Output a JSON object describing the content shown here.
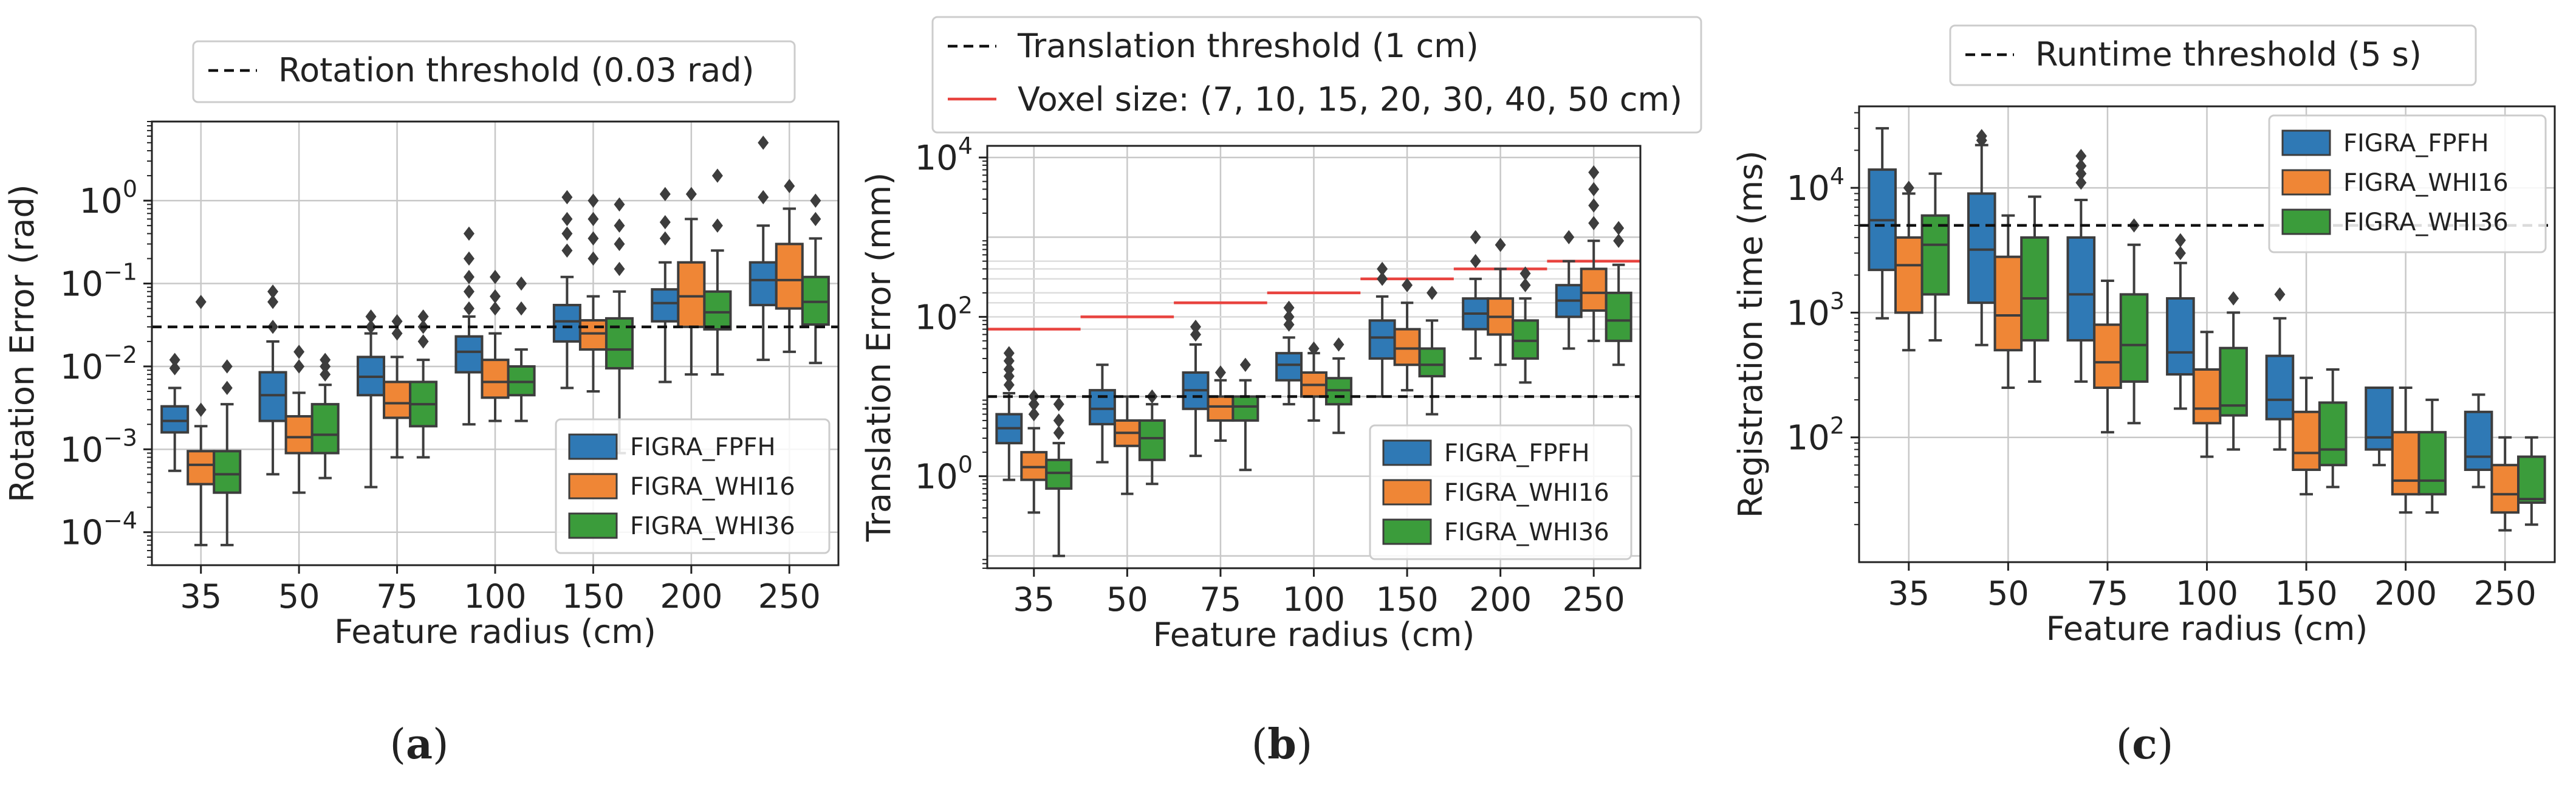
{
  "colors": {
    "fpfh": "#2f79b5",
    "whi16": "#ef8636",
    "whi36": "#3b9c3b",
    "voxel": "#e8433f",
    "box_edge": "#3d3d3d",
    "grid": "#c8c8c8"
  },
  "captions": {
    "a": "a",
    "b": "b",
    "c": "c"
  },
  "chart_data": [
    {
      "type": "box",
      "panel": "a",
      "yscale": "log",
      "ylim": [
        4e-05,
        9
      ],
      "title": "",
      "xlabel": "Feature radius (cm)",
      "ylabel": "Rotation Error (rad)",
      "yticks": [
        {
          "v": 0.0001,
          "base": "10",
          "exp": "−4"
        },
        {
          "v": 0.001,
          "base": "10",
          "exp": "−3"
        },
        {
          "v": 0.01,
          "base": "10",
          "exp": "−2"
        },
        {
          "v": 0.1,
          "base": "10",
          "exp": "−1"
        },
        {
          "v": 1,
          "base": "10",
          "exp": "0"
        }
      ],
      "categories": [
        "35",
        "50",
        "75",
        "100",
        "150",
        "200",
        "250"
      ],
      "threshold": {
        "label": "Rotation threshold (0.03 rad)",
        "value": 0.03
      },
      "legend": [
        "FIGRA_FPFH",
        "FIGRA_WHI16",
        "FIGRA_WHI36"
      ],
      "legend_position": "lower-right",
      "series": [
        {
          "name": "FIGRA_FPFH",
          "color_key": "fpfh",
          "boxes": [
            {
              "lo": 0.00055,
              "q1": 0.0016,
              "med": 0.0022,
              "q3": 0.0033,
              "hi": 0.0055,
              "out": [
                0.0095,
                0.012
              ]
            },
            {
              "lo": 0.0005,
              "q1": 0.0022,
              "med": 0.0045,
              "q3": 0.0085,
              "hi": 0.02,
              "out": [
                0.03,
                0.06,
                0.08
              ]
            },
            {
              "lo": 0.00035,
              "q1": 0.0045,
              "med": 0.0075,
              "q3": 0.013,
              "hi": 0.025,
              "out": [
                0.03,
                0.04
              ]
            },
            {
              "lo": 0.002,
              "q1": 0.0085,
              "med": 0.015,
              "q3": 0.023,
              "hi": 0.04,
              "out": [
                0.05,
                0.08,
                0.12,
                0.2,
                0.4
              ]
            },
            {
              "lo": 0.0055,
              "q1": 0.02,
              "med": 0.035,
              "q3": 0.055,
              "hi": 0.12,
              "out": [
                0.25,
                0.4,
                0.6,
                1.1
              ]
            },
            {
              "lo": 0.0065,
              "q1": 0.035,
              "med": 0.058,
              "q3": 0.085,
              "hi": 0.18,
              "out": [
                0.35,
                0.55,
                1.2
              ]
            },
            {
              "lo": 0.012,
              "q1": 0.055,
              "med": 0.11,
              "q3": 0.18,
              "hi": 0.5,
              "out": [
                1.1,
                5
              ]
            }
          ]
        },
        {
          "name": "FIGRA_WHI16",
          "color_key": "whi16",
          "boxes": [
            {
              "lo": 7e-05,
              "q1": 0.00038,
              "med": 0.00065,
              "q3": 0.00095,
              "hi": 0.0019,
              "out": [
                0.003,
                0.06
              ]
            },
            {
              "lo": 0.0003,
              "q1": 0.0009,
              "med": 0.0014,
              "q3": 0.0025,
              "hi": 0.0048,
              "out": [
                0.01,
                0.015
              ]
            },
            {
              "lo": 0.0008,
              "q1": 0.0024,
              "med": 0.0036,
              "q3": 0.0065,
              "hi": 0.013,
              "out": [
                0.025,
                0.035
              ]
            },
            {
              "lo": 0.0022,
              "q1": 0.0042,
              "med": 0.0065,
              "q3": 0.012,
              "hi": 0.025,
              "out": [
                0.05,
                0.07,
                0.12
              ]
            },
            {
              "lo": 0.005,
              "q1": 0.016,
              "med": 0.025,
              "q3": 0.036,
              "hi": 0.07,
              "out": [
                0.2,
                0.35,
                0.6,
                1.0
              ]
            },
            {
              "lo": 0.008,
              "q1": 0.03,
              "med": 0.07,
              "q3": 0.18,
              "hi": 0.6,
              "out": [
                1.2
              ]
            },
            {
              "lo": 0.015,
              "q1": 0.05,
              "med": 0.11,
              "q3": 0.3,
              "hi": 0.8,
              "out": [
                1.5
              ]
            }
          ]
        },
        {
          "name": "FIGRA_WHI36",
          "color_key": "whi36",
          "boxes": [
            {
              "lo": 7e-05,
              "q1": 0.0003,
              "med": 0.0005,
              "q3": 0.00095,
              "hi": 0.0035,
              "out": [
                0.0055,
                0.01
              ]
            },
            {
              "lo": 0.00045,
              "q1": 0.0009,
              "med": 0.0015,
              "q3": 0.0035,
              "hi": 0.006,
              "out": [
                0.008,
                0.01,
                0.012
              ]
            },
            {
              "lo": 0.0008,
              "q1": 0.0019,
              "med": 0.0035,
              "q3": 0.0065,
              "hi": 0.012,
              "out": [
                0.02,
                0.03,
                0.04
              ]
            },
            {
              "lo": 0.0022,
              "q1": 0.0045,
              "med": 0.0065,
              "q3": 0.01,
              "hi": 0.016,
              "out": [
                0.05,
                0.1
              ]
            },
            {
              "lo": 0.0009,
              "q1": 0.0095,
              "med": 0.016,
              "q3": 0.038,
              "hi": 0.08,
              "out": [
                0.15,
                0.3,
                0.5,
                0.9
              ]
            },
            {
              "lo": 0.008,
              "q1": 0.028,
              "med": 0.045,
              "q3": 0.08,
              "hi": 0.25,
              "out": [
                0.5,
                2
              ]
            },
            {
              "lo": 0.011,
              "q1": 0.032,
              "med": 0.06,
              "q3": 0.12,
              "hi": 0.35,
              "out": [
                0.6,
                1.0
              ]
            }
          ]
        }
      ]
    },
    {
      "type": "box",
      "panel": "b",
      "yscale": "log",
      "ylim": [
        0.07,
        14000
      ],
      "title": "",
      "xlabel": "Feature radius (cm)",
      "ylabel": "Translation Error (mm)",
      "yticks": [
        {
          "v": 1,
          "base": "10",
          "exp": "0"
        },
        {
          "v": 100,
          "base": "10",
          "exp": "2"
        },
        {
          "v": 10000,
          "base": "10",
          "exp": "4"
        }
      ],
      "categories": [
        "35",
        "50",
        "75",
        "100",
        "150",
        "200",
        "250"
      ],
      "threshold": {
        "label": "Translation threshold (1 cm)",
        "value": 10
      },
      "voxel": {
        "label": "Voxel size: (7, 10, 15, 20, 30, 40, 50 cm)",
        "values_mm": [
          70,
          100,
          150,
          200,
          300,
          400,
          500
        ]
      },
      "legend": [
        "FIGRA_FPFH",
        "FIGRA_WHI16",
        "FIGRA_WHI36"
      ],
      "legend_position": "lower-right",
      "series": [
        {
          "name": "FIGRA_FPFH",
          "color_key": "fpfh",
          "boxes": [
            {
              "lo": 0.9,
              "q1": 2.6,
              "med": 4,
              "q3": 6,
              "hi": 11,
              "out": [
                14,
                18,
                22,
                28,
                35
              ]
            },
            {
              "lo": 1.5,
              "q1": 4.5,
              "med": 7,
              "q3": 12,
              "hi": 25,
              "out": []
            },
            {
              "lo": 1.8,
              "q1": 7,
              "med": 12,
              "q3": 20,
              "hi": 45,
              "out": [
                60,
                75
              ]
            },
            {
              "lo": 8,
              "q1": 16,
              "med": 25,
              "q3": 35,
              "hi": 55,
              "out": [
                80,
                100,
                130
              ]
            },
            {
              "lo": 10,
              "q1": 30,
              "med": 55,
              "q3": 90,
              "hi": 180,
              "out": [
                300,
                400
              ]
            },
            {
              "lo": 30,
              "q1": 70,
              "med": 110,
              "q3": 170,
              "hi": 300,
              "out": [
                500,
                1000
              ]
            },
            {
              "lo": 40,
              "q1": 100,
              "med": 160,
              "q3": 250,
              "hi": 500,
              "out": [
                1000
              ]
            }
          ]
        },
        {
          "name": "FIGRA_WHI16",
          "color_key": "whi16",
          "boxes": [
            {
              "lo": 0.35,
              "q1": 0.9,
              "med": 1.3,
              "q3": 2,
              "hi": 4,
              "out": [
                6,
                8,
                10
              ]
            },
            {
              "lo": 0.6,
              "q1": 2.4,
              "med": 3.5,
              "q3": 5,
              "hi": 10,
              "out": []
            },
            {
              "lo": 2.8,
              "q1": 5,
              "med": 7.5,
              "q3": 10,
              "hi": 16,
              "out": [
                20
              ]
            },
            {
              "lo": 5,
              "q1": 10,
              "med": 14,
              "q3": 20,
              "hi": 35,
              "out": [
                40
              ]
            },
            {
              "lo": 12,
              "q1": 25,
              "med": 40,
              "q3": 70,
              "hi": 150,
              "out": [
                250
              ]
            },
            {
              "lo": 25,
              "q1": 60,
              "med": 100,
              "q3": 170,
              "hi": 400,
              "out": [
                800
              ]
            },
            {
              "lo": 50,
              "q1": 120,
              "med": 200,
              "q3": 400,
              "hi": 900,
              "out": [
                1500,
                2500,
                4000,
                6500
              ]
            }
          ]
        },
        {
          "name": "FIGRA_WHI36",
          "color_key": "whi36",
          "boxes": [
            {
              "lo": 0.1,
              "q1": 0.7,
              "med": 1.1,
              "q3": 1.6,
              "hi": 2.6,
              "out": [
                3.5,
                5,
                8
              ]
            },
            {
              "lo": 0.8,
              "q1": 1.6,
              "med": 3,
              "q3": 5,
              "hi": 8,
              "out": [
                10
              ]
            },
            {
              "lo": 1.2,
              "q1": 5,
              "med": 7.5,
              "q3": 10,
              "hi": 16,
              "out": [
                25
              ]
            },
            {
              "lo": 3.5,
              "q1": 8,
              "med": 12,
              "q3": 17,
              "hi": 30,
              "out": [
                45
              ]
            },
            {
              "lo": 6,
              "q1": 18,
              "med": 25,
              "q3": 40,
              "hi": 90,
              "out": [
                200
              ]
            },
            {
              "lo": 15,
              "q1": 30,
              "med": 50,
              "q3": 90,
              "hi": 170,
              "out": [
                250,
                350
              ]
            },
            {
              "lo": 25,
              "q1": 50,
              "med": 90,
              "q3": 200,
              "hi": 450,
              "out": [
                900,
                1300
              ]
            }
          ]
        }
      ]
    },
    {
      "type": "box",
      "panel": "c",
      "yscale": "log",
      "ylim": [
        10,
        45000
      ],
      "title": "",
      "xlabel": "Feature radius (cm)",
      "ylabel": "Registration time (ms)",
      "yticks": [
        {
          "v": 100,
          "base": "10",
          "exp": "2"
        },
        {
          "v": 1000,
          "base": "10",
          "exp": "3"
        },
        {
          "v": 10000,
          "base": "10",
          "exp": "4"
        }
      ],
      "categories": [
        "35",
        "50",
        "75",
        "100",
        "150",
        "200",
        "250"
      ],
      "threshold": {
        "label": "Runtime threshold (5 s)",
        "value": 5000
      },
      "legend": [
        "FIGRA_FPFH",
        "FIGRA_WHI16",
        "FIGRA_WHI36"
      ],
      "legend_position": "upper-right",
      "series": [
        {
          "name": "FIGRA_FPFH",
          "color_key": "fpfh",
          "boxes": [
            {
              "lo": 900,
              "q1": 2200,
              "med": 5500,
              "q3": 14000,
              "hi": 30000,
              "out": []
            },
            {
              "lo": 550,
              "q1": 1200,
              "med": 3200,
              "q3": 9000,
              "hi": 22000,
              "out": [
                24000,
                26000
              ]
            },
            {
              "lo": 280,
              "q1": 600,
              "med": 1400,
              "q3": 4000,
              "hi": 8000,
              "out": [
                11000,
                13000,
                15000,
                18000
              ]
            },
            {
              "lo": 170,
              "q1": 320,
              "med": 480,
              "q3": 1300,
              "hi": 2500,
              "out": [
                3000,
                3800
              ]
            },
            {
              "lo": 80,
              "q1": 140,
              "med": 200,
              "q3": 450,
              "hi": 900,
              "out": [
                1400
              ]
            },
            {
              "lo": 60,
              "q1": 80,
              "med": 100,
              "q3": 250,
              "hi": 250,
              "out": []
            },
            {
              "lo": 40,
              "q1": 55,
              "med": 70,
              "q3": 160,
              "hi": 220,
              "out": []
            }
          ]
        },
        {
          "name": "FIGRA_WHI16",
          "color_key": "whi16",
          "boxes": [
            {
              "lo": 500,
              "q1": 1000,
              "med": 2400,
              "q3": 4000,
              "hi": 9000,
              "out": [
                10000
              ]
            },
            {
              "lo": 250,
              "q1": 500,
              "med": 950,
              "q3": 2800,
              "hi": 6000,
              "out": []
            },
            {
              "lo": 110,
              "q1": 250,
              "med": 400,
              "q3": 800,
              "hi": 1800,
              "out": []
            },
            {
              "lo": 70,
              "q1": 130,
              "med": 170,
              "q3": 350,
              "hi": 700,
              "out": []
            },
            {
              "lo": 35,
              "q1": 55,
              "med": 75,
              "q3": 160,
              "hi": 300,
              "out": []
            },
            {
              "lo": 25,
              "q1": 35,
              "med": 45,
              "q3": 110,
              "hi": 250,
              "out": []
            },
            {
              "lo": 18,
              "q1": 25,
              "med": 35,
              "q3": 60,
              "hi": 100,
              "out": []
            }
          ]
        },
        {
          "name": "FIGRA_WHI36",
          "color_key": "whi36",
          "boxes": [
            {
              "lo": 600,
              "q1": 1400,
              "med": 3500,
              "q3": 6000,
              "hi": 13000,
              "out": []
            },
            {
              "lo": 280,
              "q1": 600,
              "med": 1300,
              "q3": 4000,
              "hi": 8500,
              "out": []
            },
            {
              "lo": 130,
              "q1": 280,
              "med": 550,
              "q3": 1400,
              "hi": 3500,
              "out": [
                5000
              ]
            },
            {
              "lo": 80,
              "q1": 150,
              "med": 180,
              "q3": 520,
              "hi": 1000,
              "out": [
                1300
              ]
            },
            {
              "lo": 40,
              "q1": 60,
              "med": 80,
              "q3": 190,
              "hi": 350,
              "out": []
            },
            {
              "lo": 25,
              "q1": 35,
              "med": 45,
              "q3": 110,
              "hi": 200,
              "out": []
            },
            {
              "lo": 20,
              "q1": 30,
              "med": 32,
              "q3": 70,
              "hi": 100,
              "out": []
            }
          ]
        }
      ]
    }
  ]
}
